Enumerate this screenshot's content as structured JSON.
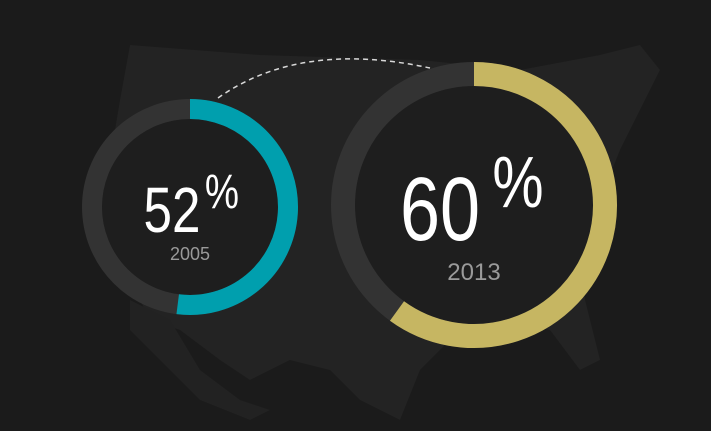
{
  "chart_data": [
    {
      "type": "donut",
      "categories": [
        "2005"
      ],
      "values": [
        52
      ],
      "unit": "%",
      "ylim": [
        0,
        100
      ],
      "color": "#009fae",
      "track_color": "#333333"
    },
    {
      "type": "donut",
      "categories": [
        "2013"
      ],
      "values": [
        60
      ],
      "unit": "%",
      "ylim": [
        0,
        100
      ],
      "color": "#c6b662",
      "track_color": "#333333"
    }
  ]
}
